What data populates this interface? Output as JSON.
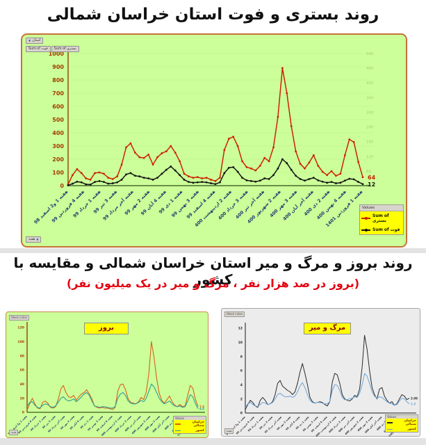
{
  "title1": "روند بستری و فوت استان خراسان شمالی",
  "title2": "روند بروز و مرگ و میر استان خراسان شمالی و مقایسه با کشور",
  "subtitle2": "(بروز در صد هزار نفر ، مرگ و میر در یک میلیون نفر)",
  "colors": {
    "hospitalized": "#cc2200",
    "deaths": "#141414",
    "province_incidence": "#d95f1e",
    "country_incidence": "#2e9e96",
    "province_mortality": "#2a2a2a",
    "country_mortality": "#6aa3d8",
    "chart_bg_green": "#ccff99",
    "chart_bg_gray": "#ececec",
    "legend_bg": "#ffff00"
  },
  "main_chart": {
    "filter_button": "استان",
    "pivot_buttons": [
      "Sum of فوت",
      "Sum of بستری"
    ],
    "axis_field_button": "هفته",
    "legend": {
      "header": "Values",
      "items": [
        {
          "label": "Sum of بستری",
          "color": "#cc2200"
        },
        {
          "label": "Sum of فوت",
          "color": "#141414"
        }
      ]
    }
  },
  "bottom_left": {
    "title": "بروز",
    "field_button": "Week index",
    "corner_button": "هفته",
    "legend": {
      "header": "Values",
      "items": [
        {
          "label": "خراسان شمالی",
          "color": "#d95f1e"
        },
        {
          "label": "کشور",
          "color": "#2e9e96"
        }
      ]
    }
  },
  "bottom_right": {
    "title": "مرگ و میر",
    "field_button": "Week index",
    "corner_button": "هفته",
    "legend": {
      "header": "Values",
      "items": [
        {
          "label": "خراسان شمالی",
          "color": "#2a2a2a"
        },
        {
          "label": "کشور",
          "color": "#6aa3d8"
        }
      ]
    }
  },
  "x_labels": [
    "هفته 1 و2 اسفند 98",
    "هفته 4 فروردین 99",
    "هفته 1 خرداد 99",
    "هفته 3 تیر 99",
    "هفته آخر مرداد 99",
    "هفته 2 مهر 99",
    "هفته 4 آبان 99",
    "هفته 1 دی 99",
    "هفته 3 بهمن 99",
    "هفته 4 اسفند 99",
    "هفته 2 اردیبهشت 400",
    "هفته 3 خرداد 400",
    "هفته آخر تیر 400",
    "هفته 2 شهریور 400",
    "هفته 3 مهر 400",
    "هفته آخر آبان 400",
    "هفته 2 دی 400",
    "هفته 4 بهمن 400",
    "هفته 1 فروردین 1401"
  ],
  "chart_data": [
    {
      "id": "main",
      "type": "line",
      "title": "روند بستری و فوت استان خراسان شمالی",
      "ylim": [
        0,
        1000
      ],
      "ystep": 100,
      "y2lim": [
        0,
        540
      ],
      "y2step": 60,
      "grid": true,
      "legend_position": "right",
      "end_labels": [
        "64",
        "12"
      ],
      "series": [
        {
          "name": "Sum of بستری",
          "color": "#cc2200",
          "values": [
            10,
            80,
            125,
            95,
            55,
            45,
            95,
            100,
            90,
            60,
            50,
            70,
            160,
            290,
            320,
            250,
            215,
            210,
            235,
            160,
            215,
            245,
            260,
            300,
            250,
            185,
            90,
            70,
            60,
            65,
            55,
            60,
            45,
            35,
            60,
            270,
            355,
            370,
            300,
            185,
            140,
            130,
            115,
            150,
            210,
            185,
            290,
            520,
            890,
            700,
            450,
            260,
            165,
            130,
            175,
            230,
            150,
            105,
            80,
            110,
            75,
            90,
            230,
            350,
            330,
            180,
            64
          ]
        },
        {
          "name": "Sum of فوت",
          "color": "#141414",
          "values": [
            2,
            15,
            30,
            25,
            10,
            8,
            28,
            35,
            28,
            15,
            18,
            25,
            45,
            85,
            95,
            75,
            70,
            60,
            55,
            45,
            60,
            90,
            120,
            145,
            115,
            80,
            45,
            28,
            22,
            25,
            28,
            25,
            18,
            12,
            25,
            95,
            135,
            140,
            105,
            60,
            40,
            35,
            30,
            38,
            55,
            50,
            80,
            130,
            200,
            170,
            120,
            75,
            50,
            38,
            50,
            60,
            40,
            30,
            22,
            28,
            18,
            22,
            38,
            52,
            48,
            28,
            12
          ]
        }
      ]
    },
    {
      "id": "incidence",
      "type": "line",
      "title": "بروز",
      "ylim": [
        0,
        120
      ],
      "ystep": 20,
      "grid": false,
      "legend_position": "bottom-right",
      "end_labels": [
        "7.9",
        "4.6"
      ],
      "series": [
        {
          "name": "خراسان شمالی",
          "color": "#d95f1e",
          "values": [
            3,
            12,
            20,
            12,
            6,
            5,
            14,
            16,
            13,
            7,
            6,
            8,
            18,
            33,
            38,
            28,
            22,
            21,
            24,
            17,
            22,
            26,
            28,
            32,
            26,
            19,
            9,
            7,
            6,
            7,
            6,
            6,
            5,
            4,
            7,
            30,
            39,
            40,
            32,
            19,
            14,
            13,
            12,
            15,
            21,
            18,
            29,
            55,
            100,
            78,
            48,
            27,
            17,
            13,
            18,
            23,
            15,
            10,
            8,
            11,
            8,
            9,
            24,
            38,
            34,
            18,
            8
          ]
        },
        {
          "name": "کشور",
          "color": "#2e9e96",
          "values": [
            8,
            14,
            15,
            10,
            7,
            6,
            10,
            12,
            11,
            8,
            7,
            9,
            14,
            20,
            22,
            18,
            16,
            17,
            19,
            15,
            18,
            22,
            26,
            28,
            24,
            16,
            9,
            8,
            7,
            8,
            8,
            7,
            6,
            6,
            8,
            20,
            26,
            28,
            24,
            16,
            13,
            12,
            12,
            14,
            17,
            15,
            20,
            30,
            40,
            36,
            28,
            20,
            15,
            12,
            14,
            16,
            12,
            9,
            8,
            9,
            7,
            8,
            16,
            25,
            22,
            12,
            5
          ]
        }
      ]
    },
    {
      "id": "mortality",
      "type": "line",
      "title": "مرگ و میر",
      "ylim": [
        0,
        12
      ],
      "ystep": 2,
      "grid": false,
      "legend_position": "bottom-right",
      "end_labels": [
        "2.08",
        "1.3"
      ],
      "series": [
        {
          "name": "خراسان شمالی",
          "color": "#2a2a2a",
          "values": [
            0.5,
            1.2,
            1.8,
            1.5,
            1.0,
            0.8,
            1.8,
            2.2,
            1.8,
            1.2,
            1.3,
            1.6,
            2.6,
            4.2,
            4.6,
            3.8,
            3.5,
            3.2,
            3.0,
            2.6,
            3.0,
            4.2,
            5.8,
            7.0,
            5.6,
            4.0,
            2.2,
            1.6,
            1.4,
            1.5,
            1.6,
            1.5,
            1.2,
            1.0,
            1.6,
            4.4,
            5.6,
            5.4,
            4.2,
            2.6,
            2.0,
            1.8,
            1.7,
            2.0,
            2.5,
            2.3,
            3.4,
            6.5,
            11.0,
            9.0,
            6.0,
            3.6,
            2.6,
            2.0,
            3.4,
            3.6,
            2.4,
            1.8,
            1.4,
            1.6,
            1.1,
            1.3,
            2.0,
            2.6,
            2.4,
            1.9,
            2.1
          ]
        },
        {
          "name": "کشور",
          "color": "#6aa3d8",
          "values": [
            0.8,
            1.3,
            1.5,
            1.2,
            1.0,
            0.9,
            1.2,
            1.5,
            1.4,
            1.2,
            1.3,
            1.5,
            2.0,
            2.6,
            2.8,
            2.5,
            2.3,
            2.3,
            2.4,
            2.2,
            2.4,
            3.0,
            3.8,
            4.3,
            3.6,
            2.6,
            1.8,
            1.5,
            1.4,
            1.5,
            1.5,
            1.4,
            1.3,
            1.3,
            1.6,
            3.2,
            4.0,
            3.9,
            3.2,
            2.2,
            1.9,
            1.9,
            2.0,
            2.1,
            2.3,
            2.2,
            2.8,
            4.0,
            5.6,
            5.2,
            4.2,
            3.0,
            2.4,
            2.1,
            2.3,
            2.2,
            1.9,
            1.6,
            1.4,
            1.3,
            1.1,
            1.2,
            1.7,
            2.1,
            2.0,
            1.6,
            1.3
          ]
        }
      ]
    }
  ]
}
